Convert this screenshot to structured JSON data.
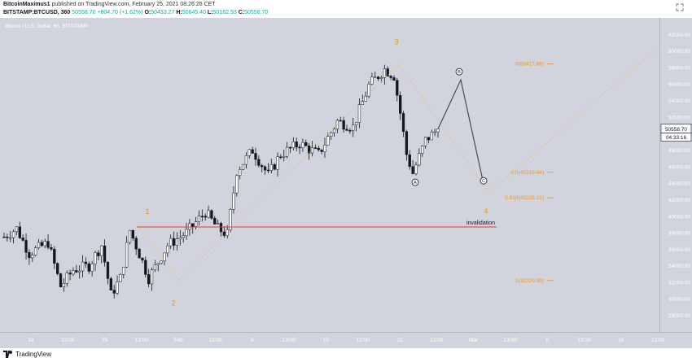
{
  "header": {
    "publish_author": "BitcoinMaximus1",
    "publish_rest": "published on TradingView.com, February 25, 2021 08:26:26 CET",
    "symbol_line": "BITSTAMP:BTCUSD, 360",
    "last": "50558.70",
    "change": "+804.70 (+1.62%)",
    "o_label": "O:",
    "o": "50433.27",
    "h_label": "H:",
    "h": "50645.40",
    "l_label": "L:",
    "l": "50162.93",
    "c_label": "C:",
    "c": "50558.70"
  },
  "footer": {
    "logo_text": "TradingView"
  },
  "colors": {
    "plot_bg": "#d1d4dc",
    "candle": "#131722",
    "wave_label": "#f7931a",
    "fib_line": "#f7b05a",
    "invalidation": "#e53935",
    "path": "#4a4a4a"
  },
  "chart_data": {
    "type": "candlestick",
    "title": "Bitcoin / U.S. Dollar, 6h, BITSTAMP",
    "ylim": [
      26000,
      64000
    ],
    "y_ticks": [
      28000,
      30000,
      32000,
      34000,
      36000,
      38000,
      40000,
      42000,
      44000,
      46000,
      48000,
      50000,
      52000,
      54000,
      56000,
      58000,
      60000,
      62000
    ],
    "y_tick_labels": [
      "28000.00",
      "30000.00",
      "32000.00",
      "34000.00",
      "36000.00",
      "38000.00",
      "40000.00",
      "42000.00",
      "44000.00",
      "46000.00",
      "48000.00",
      "50000.00",
      "52000.00",
      "54000.00",
      "56000.00",
      "58000.00",
      "60000.00",
      "62000.00"
    ],
    "x_tick_labels": [
      "18",
      "13:00",
      "25",
      "13:00",
      "Feb",
      "13:00",
      "8",
      "13:00",
      "15",
      "13:00",
      "22",
      "13:00",
      "Mar",
      "13:00",
      "8",
      "13:00",
      "15",
      "13:00"
    ],
    "last_price": "50558.70",
    "countdown": "04:33:16",
    "price_path": [
      [
        0,
        37500
      ],
      [
        4,
        38500
      ],
      [
        8,
        35500
      ],
      [
        14,
        36800
      ],
      [
        18,
        31500
      ],
      [
        22,
        33500
      ],
      [
        27,
        34000
      ],
      [
        31,
        36500
      ],
      [
        34,
        30500
      ],
      [
        37,
        32500
      ],
      [
        40,
        38300
      ],
      [
        44,
        34500
      ],
      [
        46,
        32500
      ],
      [
        52,
        36500
      ],
      [
        58,
        38000
      ],
      [
        64,
        40500
      ],
      [
        68,
        38500
      ],
      [
        71,
        37800
      ],
      [
        74,
        45500
      ],
      [
        79,
        48000
      ],
      [
        84,
        45000
      ],
      [
        88,
        47500
      ],
      [
        94,
        48800
      ],
      [
        100,
        47500
      ],
      [
        106,
        51500
      ],
      [
        111,
        50800
      ],
      [
        116,
        55800
      ],
      [
        121,
        57800
      ],
      [
        124,
        57000
      ],
      [
        126,
        52500
      ],
      [
        128,
        47500
      ],
      [
        130,
        45200
      ],
      [
        134,
        49200
      ],
      [
        138,
        50558
      ]
    ],
    "wave_labels": [
      {
        "text": "1",
        "price": 39500
      },
      {
        "text": "2",
        "price": 30200
      },
      {
        "text": "3",
        "price": 60000
      },
      {
        "text": "4",
        "price": 41500
      }
    ],
    "wave_points": [
      {
        "text": "A",
        "price": 44000
      },
      {
        "text": "B",
        "price": 58000
      },
      {
        "text": "C",
        "price": 43000
      }
    ],
    "fib_levels": [
      {
        "label": "0(58417.89)",
        "price": 58417.89
      },
      {
        "label": "0.5(45319.44)",
        "price": 45319.44
      },
      {
        "label": "0.618(42228.21)",
        "price": 42228.21
      },
      {
        "label": "1(32220.99)",
        "price": 32220.99
      }
    ],
    "invalidation": {
      "label": "invalidation",
      "price": 38700
    }
  }
}
